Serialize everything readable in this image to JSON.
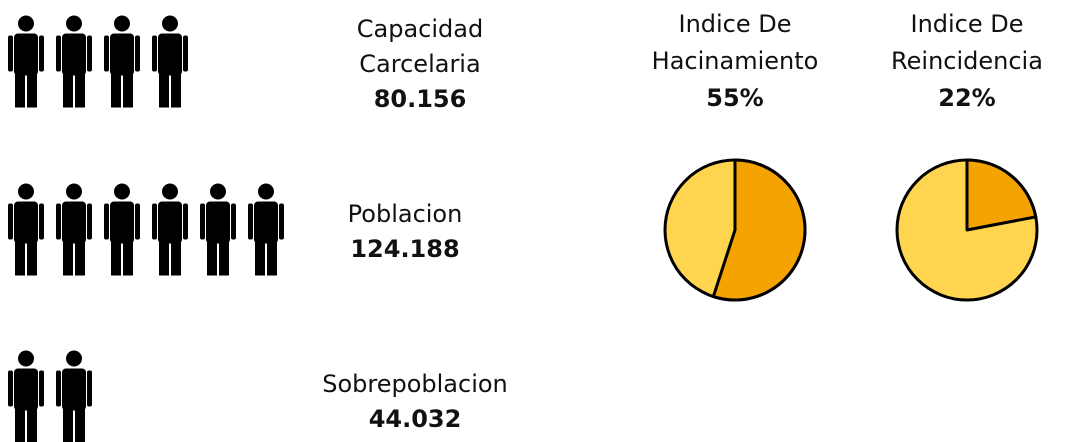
{
  "stats": [
    {
      "label_lines": [
        "Capacidad",
        "Carcelaria"
      ],
      "value": "80.156"
    },
    {
      "label_lines": [
        "Poblacion"
      ],
      "value": "124.188"
    },
    {
      "label_lines": [
        "Sobrepoblacion"
      ],
      "value": "44.032"
    }
  ],
  "chart_data": [
    {
      "type": "pie",
      "title_lines": [
        "Indice De",
        "Hacinamiento"
      ],
      "values": [
        55
      ],
      "value_labels": [
        "55%"
      ],
      "color": "#f5a300",
      "rest_color": "#ffd54f"
    },
    {
      "type": "pie",
      "title_lines": [
        "Indice De",
        "Reincidencia"
      ],
      "values": [
        22
      ],
      "value_labels": [
        "22%"
      ],
      "color": "#f5a300",
      "rest_color": "#ffd54f"
    }
  ]
}
